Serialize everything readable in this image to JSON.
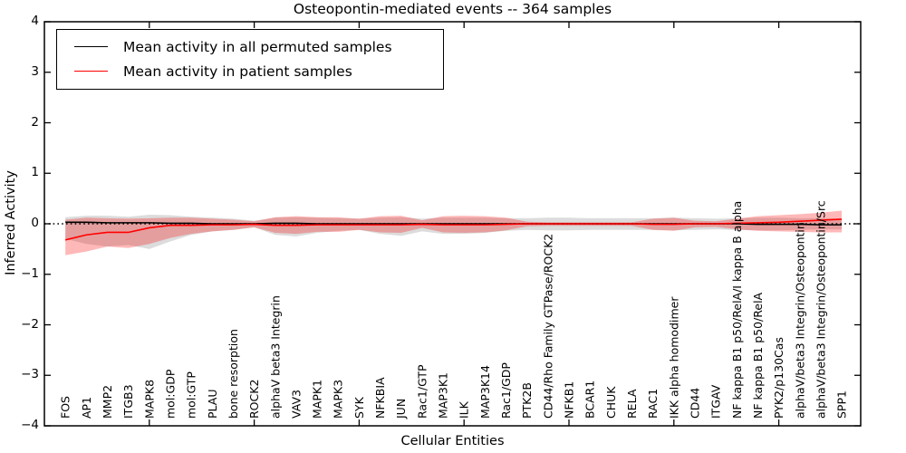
{
  "chart_data": {
    "type": "line",
    "title": "Osteopontin-mediated events -- 364 samples",
    "xlabel": "Cellular Entities",
    "ylabel": "Inferred Activity",
    "ylim": [
      -4,
      4
    ],
    "yticks": [
      4,
      3,
      2,
      1,
      0,
      -1,
      -2,
      -3,
      -4
    ],
    "ytick_labels": [
      "4",
      "3",
      "2",
      "1",
      "0",
      "−1",
      "−2",
      "−3",
      "−4"
    ],
    "frame_tick_positions": [
      5,
      10,
      15,
      20,
      25,
      30,
      35
    ],
    "zero_line": 0,
    "grid": false,
    "legend_position": "upper left",
    "categories": [
      "FOS",
      "AP1",
      "MMP2",
      "ITGB3",
      "MAPK8",
      "mol:GDP",
      "mol:GTP",
      "PLAU",
      "bone resorption",
      "ROCK2",
      "alphaV beta3 Integrin",
      "VAV3",
      "MAPK1",
      "MAPK3",
      "SYK",
      "NFKBIA",
      "JUN",
      "Rac1/GTP",
      "MAP3K1",
      "ILK",
      "MAP3K14",
      "Rac1/GDP",
      "PTK2B",
      "CD44/Rho Family GTPase/ROCK2",
      "NFKB1",
      "BCAR1",
      "CHUK",
      "RELA",
      "RAC1",
      "IKK alpha homodimer",
      "CD44",
      "ITGAV",
      "NF kappa B1 p50/RelA/I kappa B alpha",
      "NF kappa B1 p50/RelA",
      "PYK2/p130Cas",
      "alphaV/beta3 Integrin/Osteopontin",
      "alphaV/beta3 Integrin/Osteopontin/Src",
      "SPP1"
    ],
    "series": [
      {
        "name": "Mean activity in all permuted samples",
        "color": "#000000",
        "values": [
          0.03,
          0.03,
          0.02,
          0.02,
          0.02,
          0.01,
          0.01,
          0,
          0,
          0,
          0.01,
          0.01,
          0,
          0,
          0,
          0,
          0,
          0,
          0,
          0,
          0,
          0,
          0,
          0,
          0,
          0,
          0,
          0,
          0,
          0,
          0,
          0,
          0,
          -0.01,
          -0.01,
          -0.01,
          -0.02,
          -0.02
        ]
      },
      {
        "name": "Mean activity in patient samples",
        "color": "#ff0000",
        "values": [
          -0.32,
          -0.22,
          -0.17,
          -0.17,
          -0.08,
          -0.03,
          -0.03,
          -0.02,
          -0.02,
          -0.01,
          -0.03,
          -0.03,
          -0.02,
          -0.02,
          -0.02,
          -0.02,
          -0.02,
          -0.01,
          -0.02,
          -0.02,
          -0.02,
          -0.01,
          0,
          0,
          0,
          0,
          0,
          0,
          -0.01,
          -0.01,
          0,
          0,
          0.01,
          0.02,
          0.03,
          0.05,
          0.07,
          0.09
        ]
      }
    ],
    "bands": [
      {
        "name": "permuted-samples-range",
        "fill": "rgba(128,128,128,0.28)",
        "upper": [
          0.13,
          0.16,
          0.16,
          0.14,
          0.18,
          0.17,
          0.14,
          0.12,
          0.1,
          0.06,
          0.12,
          0.13,
          0.12,
          0.11,
          0.1,
          0.12,
          0.13,
          0.1,
          0.12,
          0.12,
          0.12,
          0.11,
          0.11,
          0.12,
          0.12,
          0.11,
          0.11,
          0.11,
          0.11,
          0.12,
          0.11,
          0.1,
          0.11,
          0.12,
          0.12,
          0.11,
          0.11,
          0.1
        ],
        "lower": [
          -0.3,
          -0.4,
          -0.45,
          -0.42,
          -0.5,
          -0.35,
          -0.22,
          -0.15,
          -0.12,
          -0.07,
          -0.22,
          -0.25,
          -0.18,
          -0.14,
          -0.12,
          -0.2,
          -0.24,
          -0.15,
          -0.2,
          -0.2,
          -0.18,
          -0.14,
          -0.12,
          -0.13,
          -0.13,
          -0.12,
          -0.12,
          -0.12,
          -0.12,
          -0.13,
          -0.12,
          -0.11,
          -0.12,
          -0.13,
          -0.13,
          -0.12,
          -0.11,
          -0.11
        ]
      },
      {
        "name": "patient-samples-range",
        "fill": "rgba(255,0,0,0.28)",
        "upper": [
          0.08,
          0.12,
          0.11,
          0.1,
          0.11,
          0.12,
          0.12,
          0.1,
          0.08,
          0.05,
          0.13,
          0.15,
          0.13,
          0.13,
          0.1,
          0.15,
          0.16,
          0.07,
          0.15,
          0.16,
          0.15,
          0.12,
          0.04,
          0.03,
          0.03,
          0.03,
          0.03,
          0.03,
          0.1,
          0.12,
          0.06,
          0.05,
          0.1,
          0.15,
          0.17,
          0.19,
          0.22,
          0.26
        ],
        "lower": [
          -0.62,
          -0.55,
          -0.45,
          -0.48,
          -0.4,
          -0.28,
          -0.2,
          -0.15,
          -0.12,
          -0.07,
          -0.18,
          -0.2,
          -0.16,
          -0.16,
          -0.12,
          -0.17,
          -0.18,
          -0.08,
          -0.17,
          -0.18,
          -0.17,
          -0.13,
          -0.05,
          -0.04,
          -0.04,
          -0.04,
          -0.04,
          -0.04,
          -0.12,
          -0.14,
          -0.07,
          -0.06,
          -0.11,
          -0.14,
          -0.15,
          -0.16,
          -0.17,
          -0.17
        ]
      }
    ]
  }
}
